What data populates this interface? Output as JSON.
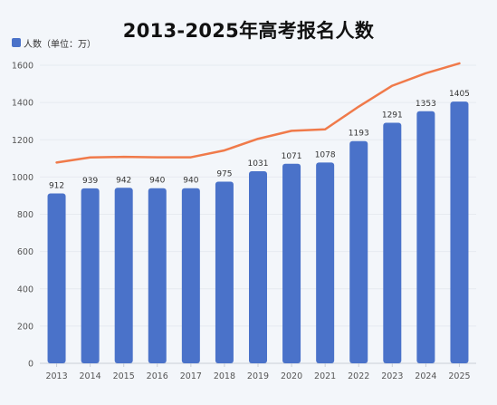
{
  "header": {
    "title": "2013-2025年高考报名人数"
  },
  "legend": {
    "label": "人数（单位：万）"
  },
  "colors": {
    "bar": "#4a72c9",
    "line": "#f07a4a",
    "grid": "#e6eaf0",
    "axis": "#c9ced6",
    "tick_text": "#555555"
  },
  "chart_data": {
    "type": "bar",
    "title": "2013-2025年高考报名人数",
    "categories": [
      "2013",
      "2014",
      "2015",
      "2016",
      "2017",
      "2018",
      "2019",
      "2020",
      "2021",
      "2022",
      "2023",
      "2024",
      "2025"
    ],
    "series": [
      {
        "name": "人数（单位：万）",
        "type": "bar",
        "values": [
          912,
          939,
          942,
          940,
          940,
          975,
          1031,
          1071,
          1078,
          1193,
          1291,
          1353,
          1405
        ]
      },
      {
        "type": "line",
        "values": [
          1078,
          1105,
          1108,
          1106,
          1106,
          1143,
          1205,
          1248,
          1256,
          1378,
          1490,
          1557,
          1610
        ]
      }
    ],
    "ylim": [
      0,
      1600
    ],
    "yticks": [
      0,
      200,
      400,
      600,
      800,
      1000,
      1200,
      1400,
      1600
    ],
    "grid": true,
    "legend_position": "top-left",
    "xlabel": "",
    "ylabel": ""
  }
}
